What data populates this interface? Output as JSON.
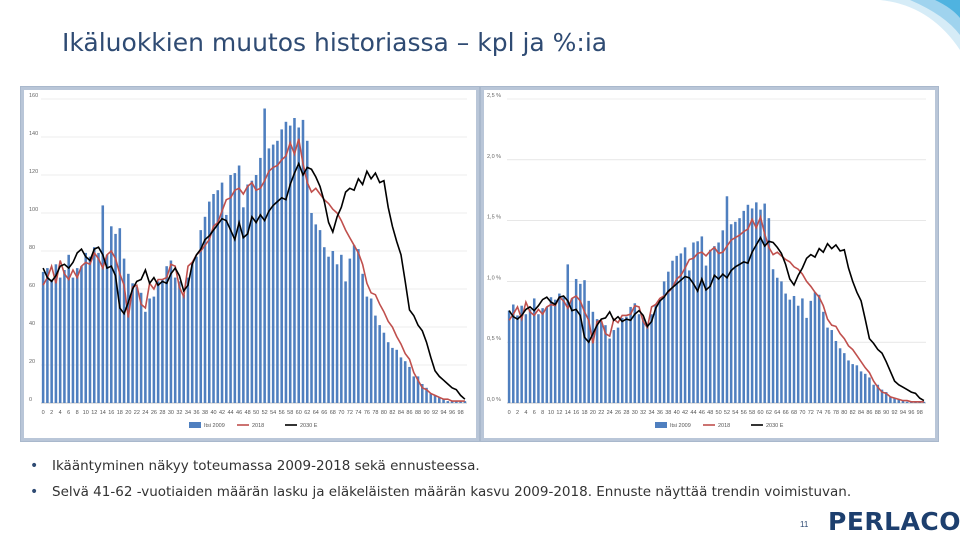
{
  "slide": {
    "title": "Ikäluokkien muutos historiassa – kpl ja %:ia",
    "page_number": "11",
    "logo_text": "PERLACON",
    "bullets": [
      "Ikääntyminen näkyy toteumassa 2009-2018 sekä ennusteessa.",
      "Selvä 41-62 -vuotiaiden määrän lasku ja eläkeläisten määrän kasvu 2009-2018. Ennuste näyttää trendin voimistuvan."
    ]
  },
  "colors": {
    "title": "#2f4b73",
    "bars": "#4f7fbf",
    "series_2018": "#c0504d",
    "series_2030": "#000000",
    "plot_bg": "#ffffff",
    "frame_bg": "#b9c6d8"
  },
  "chart_data": [
    {
      "type": "bar",
      "name": "count",
      "ylim": [
        0,
        160
      ],
      "y_ticks": [
        "0",
        "20",
        "40",
        "60",
        "80",
        "100",
        "120",
        "140",
        "160"
      ],
      "x_ticks": [
        "0",
        "2",
        "4",
        "6",
        "8",
        "10",
        "12",
        "14",
        "16",
        "18",
        "20",
        "22",
        "24",
        "26",
        "28",
        "30",
        "32",
        "34",
        "36",
        "38",
        "40",
        "42",
        "44",
        "46",
        "48",
        "50",
        "52",
        "54",
        "56",
        "58",
        "60",
        "62",
        "64",
        "66",
        "68",
        "70",
        "72",
        "74",
        "76",
        "78",
        "80",
        "82",
        "84",
        "86",
        "88",
        "90",
        "92",
        "94",
        "96",
        "98"
      ],
      "legend": [
        "Itsi 2009",
        "2018",
        "2030 E"
      ],
      "series": [
        {
          "name": "Itsi 2009",
          "kind": "bar",
          "values": [
            69,
            71,
            65,
            73,
            66,
            70,
            78,
            66,
            71,
            72,
            79,
            77,
            82,
            79,
            104,
            78,
            93,
            89,
            92,
            76,
            68,
            63,
            61,
            58,
            48,
            55,
            56,
            64,
            65,
            72,
            75,
            66,
            64,
            57,
            66,
            74,
            77,
            91,
            98,
            106,
            110,
            112,
            116,
            99,
            120,
            121,
            125,
            103,
            115,
            117,
            120,
            129,
            155,
            134,
            136,
            138,
            144,
            148,
            146,
            150,
            145,
            149,
            138,
            100,
            94,
            91,
            82,
            77,
            80,
            73,
            78,
            64,
            76,
            83,
            81,
            68,
            56,
            55,
            46,
            41,
            37,
            32,
            29,
            28,
            24,
            22,
            19,
            14,
            14,
            10,
            8,
            5,
            4,
            3,
            2,
            1,
            1,
            1,
            1,
            1
          ]
        },
        {
          "name": "2018",
          "kind": "line",
          "values": [
            62,
            66,
            72,
            63,
            75,
            68,
            65,
            70,
            66,
            72,
            74,
            73,
            79,
            76,
            71,
            78,
            80,
            76,
            68,
            62,
            45,
            61,
            62,
            52,
            50,
            63,
            60,
            65,
            65,
            66,
            73,
            72,
            61,
            56,
            72,
            74,
            78,
            80,
            83,
            86,
            93,
            95,
            101,
            107,
            108,
            112,
            113,
            110,
            114,
            116,
            112,
            113,
            117,
            122,
            124,
            125,
            128,
            130,
            137,
            131,
            139,
            126,
            116,
            111,
            113,
            110,
            107,
            105,
            102,
            100,
            96,
            91,
            87,
            83,
            79,
            73,
            63,
            58,
            57,
            52,
            48,
            43,
            40,
            35,
            31,
            26,
            23,
            16,
            12,
            8,
            7,
            5,
            4,
            3,
            2,
            2,
            1,
            1,
            1,
            1
          ]
        },
        {
          "name": "2030 E",
          "kind": "line",
          "values": [
            71,
            66,
            64,
            67,
            72,
            73,
            71,
            74,
            79,
            81,
            77,
            75,
            81,
            82,
            78,
            71,
            72,
            67,
            50,
            47,
            53,
            60,
            64,
            65,
            70,
            63,
            66,
            62,
            64,
            63,
            68,
            71,
            67,
            59,
            62,
            73,
            78,
            81,
            86,
            88,
            91,
            94,
            97,
            96,
            91,
            86,
            95,
            87,
            89,
            98,
            95,
            99,
            96,
            101,
            104,
            106,
            108,
            107,
            115,
            121,
            126,
            120,
            124,
            123,
            119,
            114,
            106,
            95,
            90,
            98,
            103,
            111,
            113,
            112,
            118,
            115,
            122,
            118,
            121,
            116,
            117,
            103,
            93,
            85,
            78,
            64,
            49,
            46,
            41,
            38,
            32,
            24,
            17,
            14,
            12,
            10,
            8,
            7,
            4,
            2
          ]
        }
      ]
    },
    {
      "type": "bar",
      "name": "percent",
      "ylim": [
        0,
        2.5
      ],
      "y_ticks": [
        "0,0 %",
        "0,5 %",
        "1,0 %",
        "1,5 %",
        "2,0 %",
        "2,5 %"
      ],
      "x_ticks": [
        "0",
        "2",
        "4",
        "6",
        "8",
        "10",
        "12",
        "14",
        "16",
        "18",
        "20",
        "22",
        "24",
        "26",
        "28",
        "30",
        "32",
        "34",
        "36",
        "38",
        "40",
        "42",
        "44",
        "46",
        "48",
        "50",
        "52",
        "54",
        "56",
        "58",
        "60",
        "62",
        "64",
        "66",
        "68",
        "70",
        "72",
        "74",
        "76",
        "78",
        "80",
        "82",
        "84",
        "86",
        "88",
        "90",
        "92",
        "94",
        "96",
        "98"
      ],
      "legend": [
        "Itsi 2009",
        "2018",
        "2030 E"
      ],
      "series": [
        {
          "name": "Itsi 2009",
          "kind": "bar",
          "values": [
            0.76,
            0.81,
            0.72,
            0.8,
            0.73,
            0.77,
            0.86,
            0.73,
            0.78,
            0.79,
            0.87,
            0.85,
            0.9,
            0.87,
            1.14,
            0.86,
            1.02,
            0.98,
            1.01,
            0.84,
            0.75,
            0.69,
            0.67,
            0.64,
            0.53,
            0.6,
            0.62,
            0.7,
            0.71,
            0.79,
            0.82,
            0.73,
            0.7,
            0.63,
            0.73,
            0.81,
            0.85,
            1.0,
            1.08,
            1.17,
            1.21,
            1.23,
            1.28,
            1.09,
            1.32,
            1.33,
            1.37,
            1.13,
            1.26,
            1.29,
            1.32,
            1.42,
            1.7,
            1.47,
            1.49,
            1.52,
            1.58,
            1.63,
            1.6,
            1.65,
            1.59,
            1.64,
            1.52,
            1.1,
            1.03,
            1.0,
            0.9,
            0.85,
            0.88,
            0.8,
            0.86,
            0.7,
            0.84,
            0.91,
            0.89,
            0.75,
            0.62,
            0.6,
            0.51,
            0.45,
            0.41,
            0.35,
            0.32,
            0.31,
            0.26,
            0.24,
            0.21,
            0.15,
            0.15,
            0.11,
            0.09,
            0.05,
            0.04,
            0.03,
            0.02,
            0.01,
            0.01,
            0.01,
            0.01,
            0.01
          ]
        },
        {
          "name": "2018",
          "kind": "line",
          "values": [
            0.68,
            0.73,
            0.79,
            0.69,
            0.83,
            0.75,
            0.72,
            0.77,
            0.73,
            0.79,
            0.81,
            0.8,
            0.87,
            0.84,
            0.78,
            0.86,
            0.88,
            0.84,
            0.75,
            0.68,
            0.49,
            0.67,
            0.68,
            0.57,
            0.55,
            0.69,
            0.66,
            0.72,
            0.72,
            0.73,
            0.8,
            0.79,
            0.67,
            0.62,
            0.79,
            0.81,
            0.86,
            0.88,
            0.91,
            0.95,
            1.02,
            1.05,
            1.11,
            1.18,
            1.19,
            1.23,
            1.24,
            1.21,
            1.25,
            1.28,
            1.23,
            1.24,
            1.29,
            1.34,
            1.36,
            1.38,
            1.41,
            1.43,
            1.51,
            1.44,
            1.53,
            1.39,
            1.28,
            1.22,
            1.24,
            1.21,
            1.18,
            1.16,
            1.12,
            1.1,
            1.06,
            1.0,
            0.96,
            0.91,
            0.87,
            0.8,
            0.69,
            0.64,
            0.63,
            0.57,
            0.53,
            0.47,
            0.44,
            0.39,
            0.34,
            0.29,
            0.25,
            0.18,
            0.13,
            0.09,
            0.08,
            0.05,
            0.04,
            0.03,
            0.02,
            0.02,
            0.01,
            0.01,
            0.01,
            0.01
          ]
        },
        {
          "name": "2030 E",
          "kind": "line",
          "values": [
            0.76,
            0.71,
            0.69,
            0.72,
            0.77,
            0.79,
            0.76,
            0.8,
            0.85,
            0.87,
            0.83,
            0.81,
            0.87,
            0.88,
            0.84,
            0.76,
            0.77,
            0.72,
            0.54,
            0.5,
            0.57,
            0.64,
            0.69,
            0.7,
            0.75,
            0.68,
            0.71,
            0.67,
            0.69,
            0.68,
            0.73,
            0.76,
            0.72,
            0.63,
            0.67,
            0.78,
            0.84,
            0.87,
            0.92,
            0.95,
            0.98,
            1.01,
            1.04,
            1.03,
            0.98,
            0.92,
            1.02,
            0.93,
            0.96,
            1.05,
            1.02,
            1.06,
            1.03,
            1.09,
            1.12,
            1.14,
            1.16,
            1.15,
            1.24,
            1.3,
            1.36,
            1.29,
            1.33,
            1.32,
            1.28,
            1.23,
            1.14,
            1.02,
            0.97,
            1.05,
            1.11,
            1.19,
            1.22,
            1.2,
            1.27,
            1.24,
            1.31,
            1.27,
            1.3,
            1.25,
            1.26,
            1.11,
            1.0,
            0.91,
            0.84,
            0.69,
            0.53,
            0.49,
            0.44,
            0.41,
            0.34,
            0.26,
            0.18,
            0.15,
            0.13,
            0.11,
            0.09,
            0.08,
            0.04,
            0.02
          ]
        }
      ]
    }
  ]
}
